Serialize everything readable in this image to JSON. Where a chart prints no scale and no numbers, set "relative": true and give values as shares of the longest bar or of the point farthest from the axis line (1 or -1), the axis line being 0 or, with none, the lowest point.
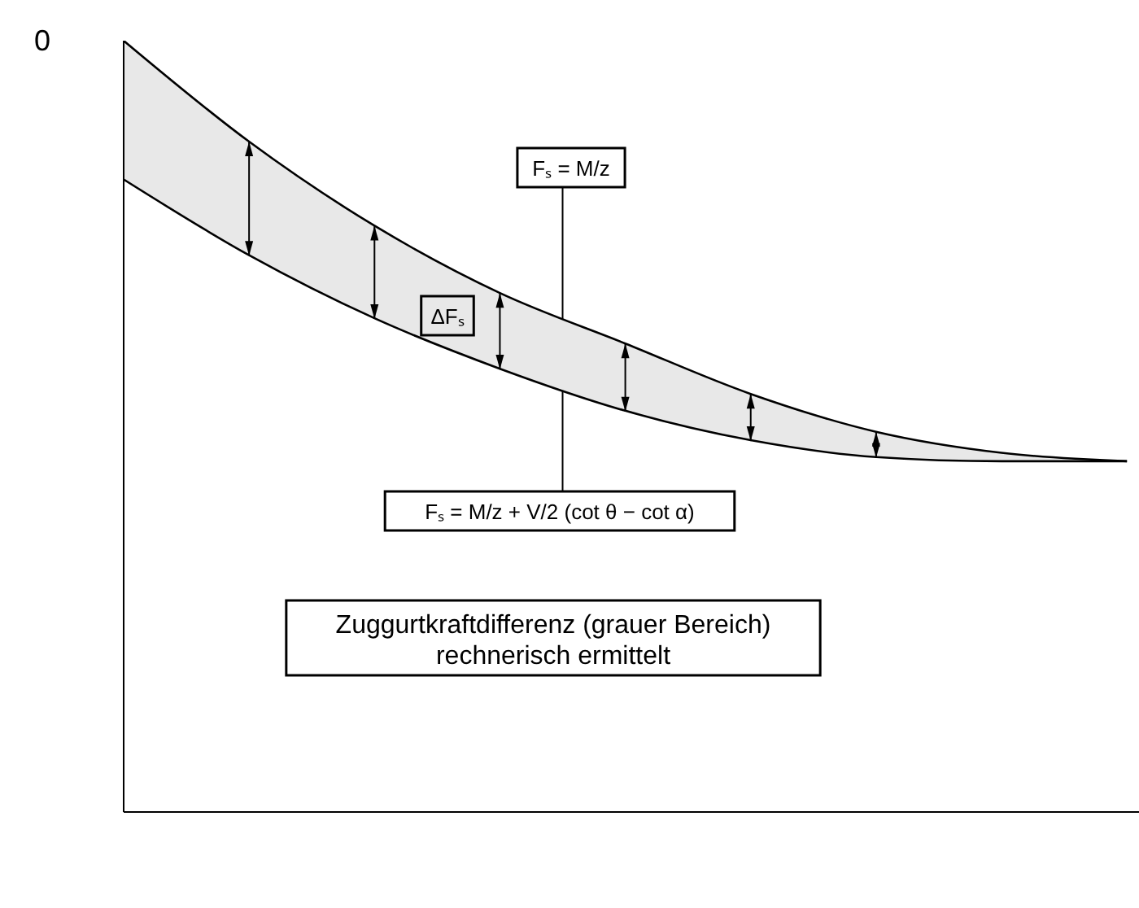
{
  "chart_data": {
    "type": "line",
    "relative": true,
    "categories": [
      null,
      null,
      null,
      null,
      null,
      null,
      null,
      null,
      null
    ],
    "series": [
      {
        "color": "#000000",
        "values": [
          0,
          -0.24,
          -0.44,
          -0.6,
          -0.72,
          -0.84,
          -0.93,
          -0.98,
          -1
        ],
        "lower": [
          -0.33,
          -0.51,
          -0.66,
          -0.78,
          -0.88,
          -0.95,
          -0.99,
          -1,
          -1
        ],
        "upper": [
          0,
          -0.24,
          -0.44,
          -0.6,
          -0.72,
          -0.84,
          -0.93,
          -0.98,
          -1
        ]
      },
      {
        "color": "#000000",
        "values": [
          -0.33,
          -0.51,
          -0.66,
          -0.78,
          -0.88,
          -0.95,
          -0.99,
          -1,
          -1
        ]
      }
    ],
    "annotations": [
      "0",
      "Fₛ = M/z",
      "ΔFₛ",
      "Fₛ = M/z + V/2 (cot θ − cot α)",
      "Zuggurtkraftdifferenz (grauer Bereich)\nrechnerisch ermittelt"
    ],
    "marker": "none",
    "line_style": "solid"
  }
}
